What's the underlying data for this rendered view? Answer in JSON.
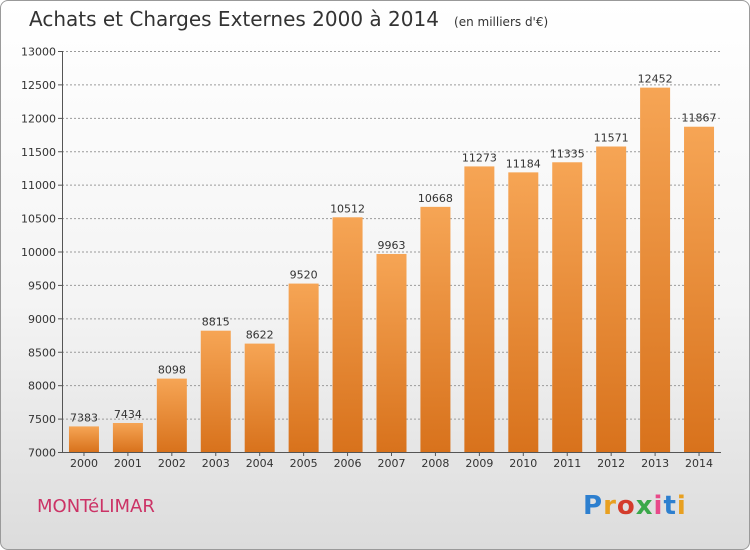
{
  "header": {
    "title": "Achats et Charges Externes 2000 à 2014",
    "subtitle": "(en milliers d'€)"
  },
  "footer": {
    "city": "MONTéLIMAR",
    "logo": "Proxiti",
    "logo_colors": [
      "#2d7fcf",
      "#e8a020",
      "#d43c2c",
      "#3aa84a",
      "#e84a8a",
      "#2d7fcf",
      "#e8a020"
    ]
  },
  "colors": {
    "bar_light": "#f6a555",
    "bar_dark": "#d8721c",
    "grid": "#9a9a9a",
    "text": "#333333"
  },
  "chart_data": {
    "type": "bar",
    "title": "Achats et Charges Externes 2000 à 2014",
    "subtitle": "(en milliers d'€)",
    "categories": [
      "2000",
      "2001",
      "2002",
      "2003",
      "2004",
      "2005",
      "2006",
      "2007",
      "2008",
      "2009",
      "2010",
      "2011",
      "2012",
      "2013",
      "2014"
    ],
    "values": [
      7383,
      7434,
      8098,
      8815,
      8622,
      9520,
      10512,
      9963,
      10668,
      11273,
      11184,
      11335,
      11571,
      12452,
      11867
    ],
    "ylim": [
      7000,
      13000
    ],
    "yticks": [
      7000,
      7500,
      8000,
      8500,
      9000,
      9500,
      10000,
      10500,
      11000,
      11500,
      12000,
      12500,
      13000
    ],
    "grid": true,
    "xlabel": "",
    "ylabel": ""
  }
}
